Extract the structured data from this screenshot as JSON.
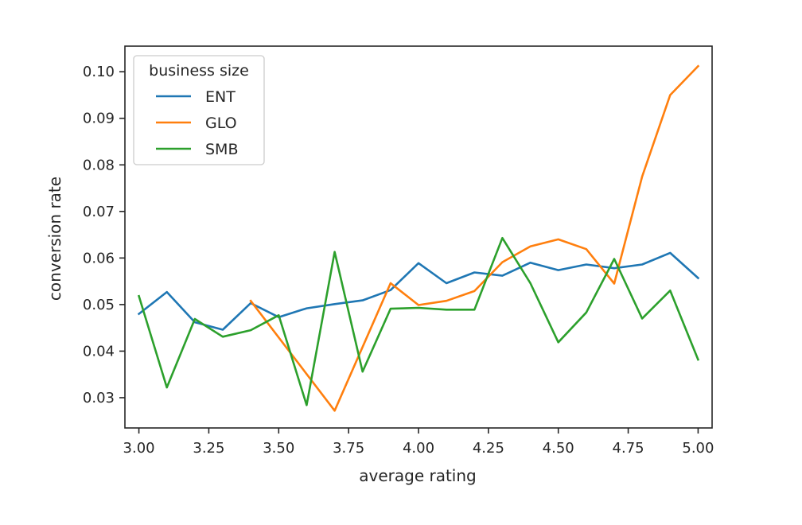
{
  "chart_data": {
    "type": "line",
    "title": "",
    "xlabel": "average rating",
    "ylabel": "conversion rate",
    "xlim": [
      2.95,
      5.05
    ],
    "ylim": [
      0.0235,
      0.1055
    ],
    "xticks": [
      3.0,
      3.25,
      3.5,
      3.75,
      4.0,
      4.25,
      4.5,
      4.75,
      5.0
    ],
    "xtick_labels": [
      "3.00",
      "3.25",
      "3.50",
      "3.75",
      "4.00",
      "4.25",
      "4.50",
      "4.75",
      "5.00"
    ],
    "yticks": [
      0.03,
      0.04,
      0.05,
      0.06,
      0.07,
      0.08,
      0.09,
      0.1
    ],
    "ytick_labels": [
      "0.03",
      "0.04",
      "0.05",
      "0.06",
      "0.07",
      "0.08",
      "0.09",
      "0.10"
    ],
    "grid": false,
    "legend": {
      "title": "business size",
      "placement": "top-left"
    },
    "x": [
      3.0,
      3.1,
      3.2,
      3.3,
      3.4,
      3.5,
      3.6,
      3.7,
      3.8,
      3.9,
      4.0,
      4.1,
      4.2,
      4.3,
      4.4,
      4.5,
      4.6,
      4.7,
      4.8,
      4.9,
      5.0
    ],
    "series": [
      {
        "name": "ENT",
        "color": "#1f77b4",
        "values": [
          0.048,
          0.0527,
          0.0462,
          0.0446,
          0.0503,
          0.0473,
          0.0492,
          0.0501,
          0.0509,
          0.0531,
          0.0589,
          0.0546,
          0.0569,
          0.0562,
          0.059,
          0.0574,
          0.0586,
          0.0578,
          0.0586,
          0.0611,
          0.0557
        ]
      },
      {
        "name": "GLO",
        "color": "#ff7f0e",
        "values": [
          null,
          null,
          null,
          null,
          0.0508,
          null,
          null,
          0.0272,
          null,
          0.0546,
          0.0499,
          0.0508,
          0.0529,
          0.0591,
          0.0625,
          0.064,
          0.0619,
          0.0545,
          0.0775,
          0.095,
          0.1012
        ]
      },
      {
        "name": "SMB",
        "color": "#2ca02c",
        "values": [
          0.0518,
          0.0322,
          0.0469,
          0.0431,
          0.0445,
          0.0477,
          0.0284,
          0.0613,
          0.0356,
          0.0491,
          0.0493,
          0.0489,
          0.0489,
          0.0643,
          0.0546,
          0.0419,
          0.0483,
          0.0598,
          0.047,
          0.053,
          0.0382
        ]
      }
    ]
  }
}
